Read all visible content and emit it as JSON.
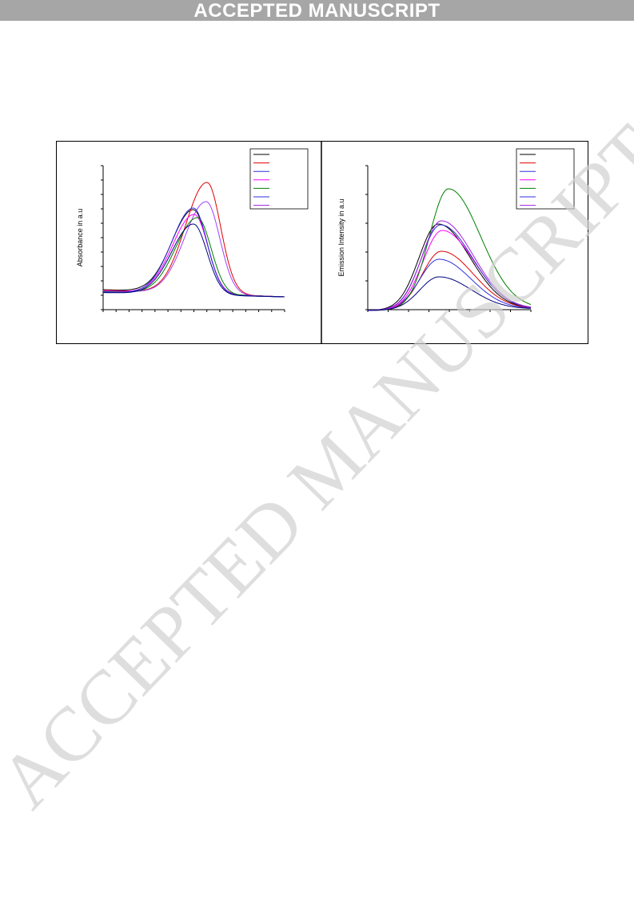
{
  "header": {
    "title": "ACCEPTED MANUSCRIPT"
  },
  "watermark": "ACCEPTED MANUSCRIPT",
  "figure": {
    "left_panel": {
      "y_label": "Absorbance in a.u"
    },
    "right_panel": {
      "y_label": "Emission Intensity in a.u"
    }
  }
}
